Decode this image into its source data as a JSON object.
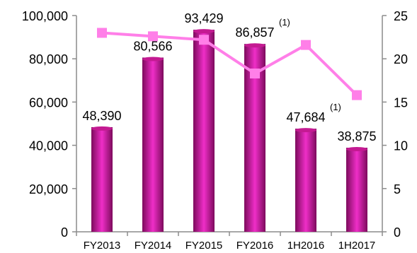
{
  "chart_data": {
    "type": "bar",
    "categories": [
      "FY2013",
      "FY2014",
      "FY2015",
      "FY2016",
      "1H2016",
      "1H2017"
    ],
    "series": [
      {
        "type": "bar",
        "axis": "left",
        "values": [
          48390,
          80566,
          93429,
          86857,
          47684,
          38875
        ],
        "labels": [
          "48,390",
          "80,566",
          "93,429",
          "86,857",
          "47,684",
          "38,875"
        ],
        "color": "#B0137F"
      },
      {
        "type": "line",
        "axis": "right",
        "values": [
          23.0,
          22.6,
          22.2,
          18.3,
          21.6,
          15.8
        ],
        "color": "#FF7FE8"
      }
    ],
    "annotations": [
      {
        "category": "FY2016",
        "text": "(1)"
      },
      {
        "category": "1H2016",
        "text": "(1)"
      }
    ],
    "y_left": {
      "ylim": [
        0,
        100000
      ],
      "ticks": [
        "0",
        "20,000",
        "40,000",
        "60,000",
        "80,000",
        "100,000"
      ]
    },
    "y_right": {
      "ylim": [
        0,
        25
      ],
      "ticks": [
        "0",
        "5",
        "10",
        "15",
        "20",
        "25"
      ]
    },
    "title": "",
    "xlabel": "",
    "ylabel": "",
    "grid": false,
    "legend": "none",
    "axis_color": "#8c8c8c"
  }
}
